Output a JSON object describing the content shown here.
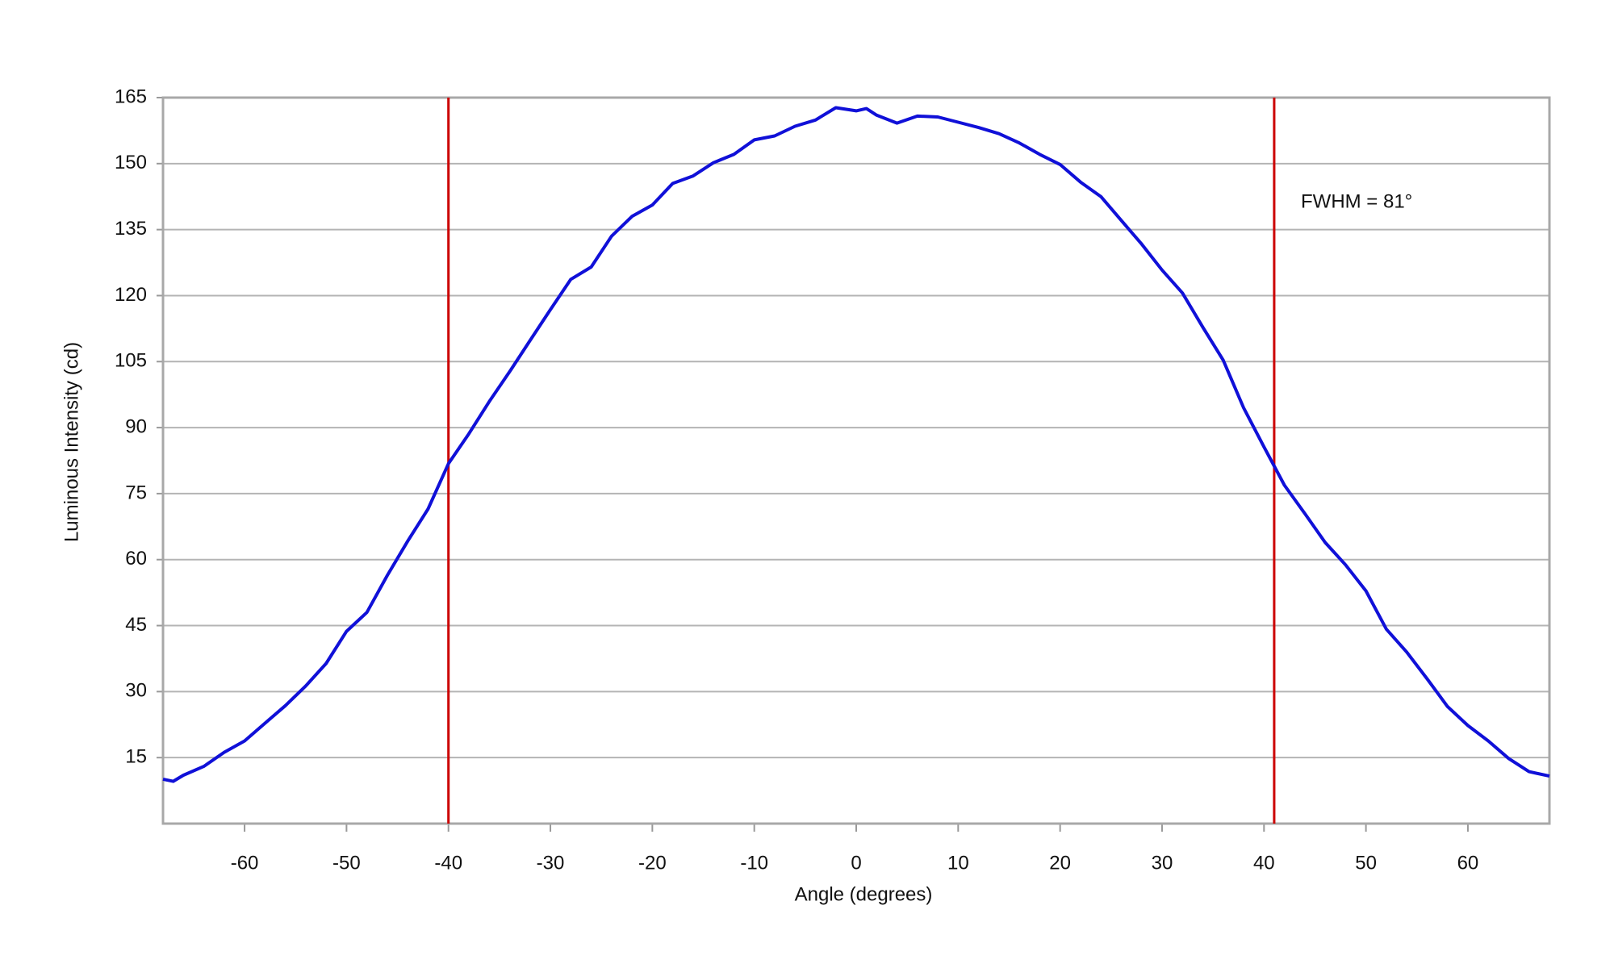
{
  "chart_data": {
    "type": "line",
    "x_label": "Angle (degrees)",
    "y_label": "Luminous Intensity (cd)",
    "annotation": "FWHM = 81°",
    "x": [
      -68,
      -67,
      -66,
      -64,
      -62,
      -60,
      -58,
      -56,
      -54,
      -52,
      -50,
      -48,
      -46,
      -44,
      -42,
      -40,
      -38,
      -36,
      -34,
      -32,
      -30,
      -28,
      -26,
      -24,
      -22,
      -20,
      -18,
      -16,
      -14,
      -12,
      -10,
      -8,
      -6,
      -4,
      -2,
      0,
      1,
      2,
      4,
      6,
      8,
      10,
      12,
      14,
      16,
      18,
      20,
      22,
      24,
      26,
      28,
      30,
      32,
      34,
      36,
      38,
      40,
      42,
      44,
      46,
      48,
      50,
      52,
      54,
      56,
      58,
      60,
      62,
      64,
      66,
      68
    ],
    "series": [
      {
        "color": "#1010d8",
        "values": [
          10.1,
          9.6,
          11,
          13,
          16.2,
          18.8,
          22.8,
          26.8,
          31.3,
          36.4,
          43.7,
          48,
          56.4,
          64.2,
          71.5,
          81.8,
          88.6,
          95.9,
          102.7,
          109.8,
          116.8,
          123.7,
          126.5,
          133.5,
          138,
          140.6,
          145.5,
          147.2,
          150.2,
          152.1,
          155.4,
          156.3,
          158.5,
          159.9,
          162.7,
          162,
          162.5,
          161,
          159.2,
          160.8,
          160.6,
          159.4,
          158.2,
          156.8,
          154.7,
          152.1,
          149.8,
          145.8,
          142.5,
          137.1,
          131.7,
          125.8,
          120.6,
          112.8,
          105.3,
          94.5,
          85.6,
          76.9,
          70.5,
          63.9,
          58.8,
          52.9,
          44.2,
          39,
          32.9,
          26.6,
          22.3,
          18.8,
          14.8,
          11.8,
          10.8
        ]
      }
    ],
    "xlim": [
      -68,
      68
    ],
    "ylim": [
      0,
      165
    ],
    "xticks": [
      -60,
      -50,
      -40,
      -30,
      -20,
      -10,
      0,
      10,
      20,
      30,
      40,
      50,
      60
    ],
    "yticks": [
      15,
      30,
      45,
      60,
      75,
      90,
      105,
      120,
      135,
      150,
      165
    ],
    "vlines": [
      -40,
      41
    ],
    "vline_color": "#cc0000",
    "grid": true
  }
}
